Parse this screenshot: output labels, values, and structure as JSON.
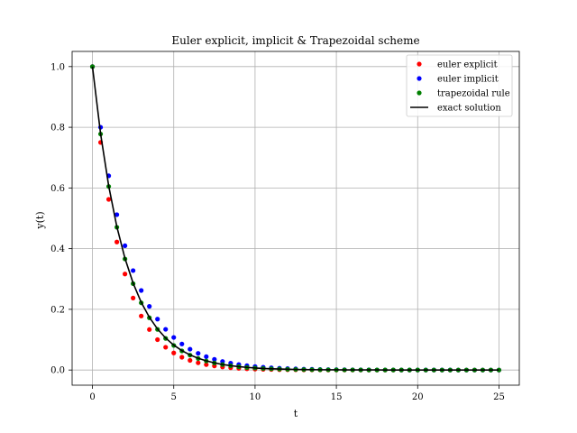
{
  "chart_data": {
    "type": "scatter",
    "title": "Euler explicit, implicit & Trapezoidal scheme",
    "xlabel": "t",
    "ylabel": "y(t)",
    "xlim": [
      -1.25,
      26.25
    ],
    "ylim": [
      -0.05,
      1.05
    ],
    "xticks": [
      0,
      5,
      10,
      15,
      20,
      25
    ],
    "yticks": [
      0.0,
      0.2,
      0.4,
      0.6,
      0.8,
      1.0
    ],
    "grid": true,
    "legend_position": "top-right",
    "x": [
      0,
      0.5,
      1,
      1.5,
      2,
      2.5,
      3,
      3.5,
      4,
      4.5,
      5,
      5.5,
      6,
      6.5,
      7,
      7.5,
      8,
      8.5,
      9,
      9.5,
      10,
      10.5,
      11,
      11.5,
      12,
      12.5,
      13,
      13.5,
      14,
      14.5,
      15,
      15.5,
      16,
      16.5,
      17,
      17.5,
      18,
      18.5,
      19,
      19.5,
      20,
      20.5,
      21,
      21.5,
      22,
      22.5,
      23,
      23.5,
      24,
      24.5,
      25
    ],
    "series": [
      {
        "name": "euler explicit",
        "kind": "points",
        "color": "#ff0000",
        "values": [
          1.0,
          0.75,
          0.5625,
          0.4219,
          0.3164,
          0.2373,
          0.178,
          0.1335,
          0.1001,
          0.0751,
          0.0563,
          0.0422,
          0.0317,
          0.0238,
          0.0178,
          0.0134,
          0.01,
          0.0075,
          0.0056,
          0.0042,
          0.0032,
          0.0024,
          0.0018,
          0.0013,
          0.001,
          0.0008,
          0.0006,
          0.0004,
          0.0003,
          0.0002,
          0.0002,
          0.0001,
          0.0001,
          0.0001,
          0.0001,
          0.0,
          0.0,
          0.0,
          0.0,
          0.0,
          0.0,
          0.0,
          0.0,
          0.0,
          0.0,
          0.0,
          0.0,
          0.0,
          0.0,
          0.0,
          0.0
        ]
      },
      {
        "name": "euler implicit",
        "kind": "points",
        "color": "#0000ff",
        "values": [
          1.0,
          0.8,
          0.64,
          0.512,
          0.4096,
          0.3277,
          0.2621,
          0.2097,
          0.1678,
          0.1342,
          0.1074,
          0.0859,
          0.0687,
          0.055,
          0.044,
          0.0352,
          0.0281,
          0.0225,
          0.018,
          0.0144,
          0.0115,
          0.0092,
          0.0074,
          0.0059,
          0.0047,
          0.0038,
          0.003,
          0.0024,
          0.0019,
          0.0015,
          0.0012,
          0.001,
          0.0008,
          0.0006,
          0.0005,
          0.0004,
          0.0003,
          0.0003,
          0.0002,
          0.0002,
          0.0001,
          0.0001,
          0.0001,
          0.0001,
          0.0001,
          0.0,
          0.0,
          0.0,
          0.0,
          0.0,
          0.0
        ]
      },
      {
        "name": "trapezoidal rule",
        "kind": "points",
        "color": "#008000",
        "values": [
          1.0,
          0.7778,
          0.6049,
          0.4705,
          0.366,
          0.2846,
          0.2214,
          0.1722,
          0.1339,
          0.1042,
          0.081,
          0.063,
          0.049,
          0.0381,
          0.0297,
          0.0231,
          0.0179,
          0.014,
          0.0109,
          0.0084,
          0.0066,
          0.0051,
          0.004,
          0.0031,
          0.0024,
          0.0019,
          0.0015,
          0.0011,
          0.0009,
          0.0007,
          0.0005,
          0.0004,
          0.0003,
          0.0003,
          0.0002,
          0.0002,
          0.0001,
          0.0001,
          0.0001,
          0.0001,
          0.0001,
          0.0,
          0.0,
          0.0,
          0.0,
          0.0,
          0.0,
          0.0,
          0.0,
          0.0,
          0.0
        ]
      },
      {
        "name": "exact solution",
        "kind": "line",
        "color": "#000000",
        "values": [
          1.0,
          0.7788,
          0.6065,
          0.4724,
          0.3679,
          0.2865,
          0.2231,
          0.1738,
          0.1353,
          0.1054,
          0.0821,
          0.0639,
          0.0498,
          0.0388,
          0.0302,
          0.0235,
          0.0183,
          0.0143,
          0.0111,
          0.0087,
          0.0067,
          0.0052,
          0.0041,
          0.0032,
          0.0025,
          0.0019,
          0.0015,
          0.0012,
          0.0009,
          0.0007,
          0.0006,
          0.0004,
          0.0003,
          0.0003,
          0.0002,
          0.0002,
          0.0001,
          0.0001,
          0.0001,
          0.0001,
          0.0,
          0.0,
          0.0,
          0.0,
          0.0,
          0.0,
          0.0,
          0.0,
          0.0,
          0.0,
          0.0
        ]
      }
    ]
  }
}
